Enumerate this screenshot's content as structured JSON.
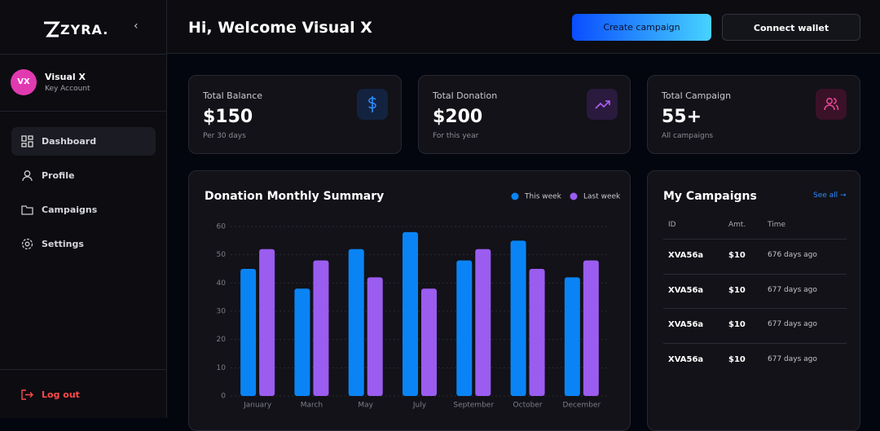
{
  "sidebar": {
    "logo": "ZYRA.",
    "user": {
      "initials": "VX",
      "name": "Visual X",
      "role": "Key Account"
    },
    "nav": [
      "Dashboard",
      "Profile",
      "Campaigns",
      "Settings"
    ],
    "logout": "Log out"
  },
  "header": {
    "greeting": "Hi, Welcome Visual X",
    "buttons": [
      "Create campaign",
      "Connect wallet"
    ]
  },
  "stats": [
    {
      "title": "Total Balance",
      "value": "$150",
      "note": "Per 30 days"
    },
    {
      "title": "Total Donation",
      "value": "$200",
      "note": "For this year"
    },
    {
      "title": "Total Campaign",
      "value": "55+",
      "note": "All campaigns"
    }
  ],
  "chart_data": {
    "type": "bar",
    "title": "Donation Monthly Summary",
    "categories": [
      "January",
      "March",
      "May",
      "July",
      "September",
      "October",
      "December"
    ],
    "series": [
      {
        "name": "This week",
        "color": "#0a84f5",
        "values": [
          45,
          38,
          52,
          58,
          48,
          55,
          42
        ]
      },
      {
        "name": "Last week",
        "color": "#9b5cf0",
        "values": [
          52,
          48,
          42,
          38,
          52,
          45,
          48
        ]
      }
    ],
    "ylim": [
      0,
      60
    ],
    "yticks": [
      0,
      10,
      20,
      30,
      40,
      50,
      60
    ],
    "grid": true
  },
  "campaigns": {
    "title": "My Campaigns",
    "link": "See all →",
    "columns": [
      "ID",
      "Amt.",
      "Time"
    ],
    "rows": [
      [
        "XVA56a",
        "$10",
        "676 days ago"
      ],
      [
        "XVA56a",
        "$10",
        "677 days ago"
      ],
      [
        "XVA56a",
        "$10",
        "677 days ago"
      ],
      [
        "XVA56a",
        "$10",
        "677 days ago"
      ]
    ]
  }
}
